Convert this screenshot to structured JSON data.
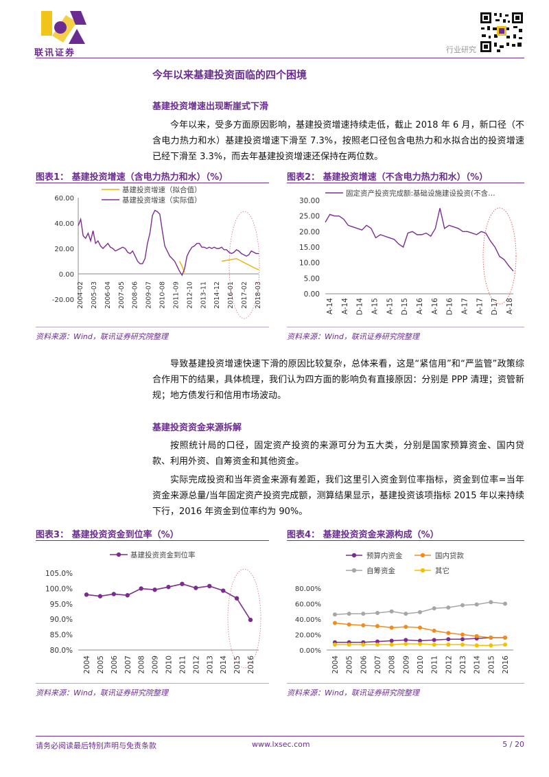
{
  "header": {
    "brand": "联讯证券",
    "section_label": "行业研究"
  },
  "section_title": "今年以来基建投资面临的四个困境",
  "sub1": {
    "title": "基建投资增速出现断崖式下滑",
    "para": "今年以来，受多方面原因影响，基建投资增速持续走低，截止 2018 年 6 月，新口径（不含电力热力和水）基建投资增速下滑至 7.3%，按照老口径包含电热力和水拟合出的投资增速已经下滑至 3.3%，而去年基建投资增速还保持在两位数。"
  },
  "fig1": {
    "title": "图表1：  基建投资增速（含电力热力和水）（%）",
    "source": "资料来源：Wind，联讯证券研究院整理"
  },
  "fig2": {
    "title": "图表2：  基建投资增速（不含电力热力和水）（%）",
    "source": "资料来源：Wind，联讯证券研究院整理"
  },
  "para2": "导致基建投资增速快速下滑的原因比较复杂，总体来看，这是“紧信用”和“严监管”政策综合作用下的结果，具体梳理，我们认为四方面的影响负有直接原因：分别是 PPP 清理；资管新规；地方债发行和信用市场波动。",
  "sub2": {
    "title": "基建投资资金来源拆解",
    "para1": "按照统计局的口径，固定资产投资的来源可分为五大类，分别是国家预算资金、国内贷款、利用外资、自筹资金和其他资金。",
    "para2": "实际完成投资和当年资金来源有差距，我们这里引入资金到位率指标，资金到位率=当年资金来源总量/当年固定资产投资完成额，测算结果显示，基建投资该项指标 2015 年以来持续下行，2016 年资金到位率约为 90%。"
  },
  "fig3": {
    "title": "图表3：  基建投资资金到位率（%）",
    "source": "资料来源：Wind，联讯证券研究院整理"
  },
  "fig4": {
    "title": "图表4：  基建投资资金来源构成（%）",
    "source": "资料来源：Wind，联讯证券研究院整理"
  },
  "footer": {
    "disclaimer": "请务必阅读最后特别声明与免责条款",
    "website": "www.lxsec.com",
    "page": "5 / 20"
  },
  "chart_data": [
    {
      "id": "fig1",
      "type": "line",
      "series": [
        {
          "name": "基建投资增速（拟合值）",
          "color": "#e8b400"
        },
        {
          "name": "基建投资增速（实际值）",
          "color": "#7b2d8e"
        }
      ],
      "x_ticks": [
        "2004-02",
        "2005-03",
        "2006-04",
        "2007-05",
        "2008-06",
        "2009-07",
        "2010-08",
        "2011-09",
        "2012-10",
        "2013-11",
        "2014-12",
        "2016-01",
        "2017-02",
        "2018-03"
      ],
      "y_ticks": [
        "-20.00",
        "0.00",
        "20.00",
        "40.00",
        "60.00"
      ],
      "ylim": [
        -20,
        60
      ],
      "actual": [
        38,
        43,
        30,
        28,
        32,
        26,
        34,
        24,
        26,
        22,
        20,
        22,
        24,
        21,
        20,
        18,
        19,
        20,
        21,
        20,
        17,
        16,
        18,
        14,
        10,
        8,
        8,
        12,
        24,
        32,
        46,
        50,
        49,
        47,
        34,
        22,
        18,
        14,
        12,
        10,
        6,
        2,
        -1,
        4,
        14,
        18,
        21,
        22,
        24,
        24,
        21,
        21,
        20,
        21,
        20,
        21,
        20,
        20,
        21,
        19,
        19,
        17,
        16,
        17,
        19,
        18,
        16,
        15,
        14,
        15,
        18,
        17,
        16,
        16
      ],
      "fitted_tail": [
        [
          58,
          10
        ],
        [
          64,
          12
        ],
        [
          68,
          8
        ],
        [
          70,
          6
        ],
        [
          72,
          4
        ],
        [
          73,
          3.3
        ]
      ],
      "fitted_dip": [
        [
          41,
          10
        ],
        [
          42,
          6
        ],
        [
          43,
          1
        ]
      ]
    },
    {
      "id": "fig2",
      "type": "line",
      "series": [
        {
          "name": "固定资产投资完成额:基础设施建设投资(不含…",
          "color": "#7b2d8e"
        }
      ],
      "x_ticks": [
        "A-14",
        "A-14",
        "D-14",
        "A-15",
        "A-15",
        "D-15",
        "A-16",
        "A-16",
        "D-16",
        "A-17",
        "A-17",
        "D-17",
        "A-18"
      ],
      "y_ticks": [
        "0.00",
        "5.00",
        "10.00",
        "15.00",
        "20.00",
        "25.00",
        "30.00"
      ],
      "ylim": [
        0,
        30
      ],
      "values": [
        23,
        25.5,
        25,
        25,
        24,
        22,
        21.5,
        21,
        20.5,
        22,
        21,
        18,
        19,
        18.5,
        18,
        17.5,
        16,
        15,
        19.5,
        20,
        19,
        19,
        19.5,
        18.5,
        21,
        27.5,
        21,
        22,
        21.5,
        21,
        20,
        20,
        19.5,
        19,
        20,
        19.5,
        17,
        15,
        12,
        11,
        9,
        7.3
      ]
    },
    {
      "id": "fig3",
      "type": "line",
      "series": [
        {
          "name": "基建投资资金到位率",
          "color": "#7b2d8e"
        }
      ],
      "categories": [
        "2004",
        "2005",
        "2006",
        "2007",
        "2008",
        "2009",
        "2010",
        "2011",
        "2012",
        "2013",
        "2014",
        "2015",
        "2016"
      ],
      "values": [
        98.0,
        97.5,
        98.2,
        97.8,
        100.0,
        99.6,
        100.5,
        101.5,
        100.2,
        100.8,
        99.3,
        96.8,
        89.8
      ],
      "y_ticks": [
        "80.0%",
        "85.0%",
        "90.0%",
        "95.0%",
        "100.0%",
        "105.0%"
      ],
      "ylim": [
        80,
        105
      ]
    },
    {
      "id": "fig4",
      "type": "line",
      "categories": [
        "2004",
        "2005",
        "2006",
        "2007",
        "2008",
        "2009",
        "2010",
        "2011",
        "2012",
        "2013",
        "2014",
        "2015",
        "2016"
      ],
      "y_ticks": [
        "0.00%",
        "20.00%",
        "40.00%",
        "60.00%",
        "80.00%"
      ],
      "ylim": [
        0,
        80
      ],
      "series": [
        {
          "name": "预算内资金",
          "color": "#7b2d8e",
          "values": [
            10,
            10,
            10,
            11,
            12,
            13,
            12,
            13,
            14,
            14,
            15,
            16,
            16
          ]
        },
        {
          "name": "国内贷款",
          "color": "#f08c1e",
          "values": [
            35,
            33,
            32,
            31,
            29,
            30,
            29,
            25,
            22,
            20,
            18,
            16,
            16
          ]
        },
        {
          "name": "自筹资金",
          "color": "#a6a6a6",
          "values": [
            46,
            47,
            47,
            48,
            50,
            47,
            49,
            54,
            55,
            58,
            59,
            62,
            60
          ]
        },
        {
          "name": "其它",
          "color": "#f5c000",
          "values": [
            7,
            7,
            7,
            7,
            7,
            8,
            8,
            7,
            7,
            7,
            6,
            6,
            7
          ]
        }
      ]
    }
  ]
}
